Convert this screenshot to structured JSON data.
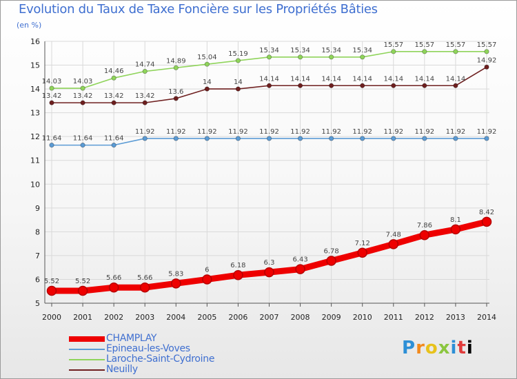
{
  "header": {
    "title": "Evolution du Taux de Taxe Foncière sur les Propriétés Bâties",
    "unit": "(en %)"
  },
  "brand": {
    "logo_text": "Proxiti"
  },
  "chart_data": {
    "type": "line",
    "title": "Evolution du Taux de Taxe Foncière sur les Propriétés Bâties",
    "ylabel": "(en %)",
    "xlabel": "",
    "ylim": [
      5,
      16
    ],
    "yticks": [
      5,
      6,
      7,
      8,
      9,
      10,
      11,
      12,
      13,
      14,
      15,
      16
    ],
    "grid": true,
    "legend_position": "bottom-left",
    "categories": [
      "2000",
      "2001",
      "2002",
      "2003",
      "2004",
      "2005",
      "2006",
      "2007",
      "2008",
      "2009",
      "2010",
      "2011",
      "2012",
      "2013",
      "2014"
    ],
    "series": [
      {
        "name": "CHAMPLAY",
        "color": "#ee0000",
        "values": [
          5.52,
          5.52,
          5.66,
          5.66,
          5.83,
          6,
          6.18,
          6.3,
          6.43,
          6.78,
          7.12,
          7.48,
          7.86,
          8.1,
          8.42
        ],
        "labels": [
          "5.52",
          "5.52",
          "5.66",
          "5.66",
          "5.83",
          "6",
          "6.18",
          "6.3",
          "6.43",
          "6.78",
          "7.12",
          "7.48",
          "7.86",
          "8.1",
          "8.42"
        ]
      },
      {
        "name": "Epineau-les-Voves",
        "color": "#5b9bd5",
        "values": [
          11.64,
          11.64,
          11.64,
          11.92,
          11.92,
          11.92,
          11.92,
          11.92,
          11.92,
          11.92,
          11.92,
          11.92,
          11.92,
          11.92,
          11.92
        ],
        "labels": [
          "11.64",
          "11.64",
          "11.64",
          "11.92",
          "11.92",
          "11.92",
          "11.92",
          "11.92",
          "11.92",
          "11.92",
          "11.92",
          "11.92",
          "11.92",
          "11.92",
          "11.92"
        ]
      },
      {
        "name": "Laroche-Saint-Cydroine",
        "color": "#8fd45a",
        "values": [
          14.03,
          14.03,
          14.46,
          14.74,
          14.89,
          15.04,
          15.19,
          15.34,
          15.34,
          15.34,
          15.34,
          15.57,
          15.57,
          15.57,
          15.57
        ],
        "labels": [
          "14.03",
          "14.03",
          "14.46",
          "14.74",
          "14.89",
          "15.04",
          "15.19",
          "15.34",
          "15.34",
          "15.34",
          "15.34",
          "15.57",
          "15.57",
          "15.57",
          "15.57"
        ]
      },
      {
        "name": "Neuilly",
        "color": "#6e1f1f",
        "values": [
          13.42,
          13.42,
          13.42,
          13.42,
          13.6,
          14,
          14,
          14.14,
          14.14,
          14.14,
          14.14,
          14.14,
          14.14,
          14.14,
          14.92
        ],
        "labels": [
          "13.42",
          "13.42",
          "13.42",
          "13.42",
          "13.6",
          "14",
          "14",
          "14.14",
          "14.14",
          "14.14",
          "14.14",
          "14.14",
          "14.14",
          "14.14",
          "14.92"
        ]
      }
    ]
  }
}
